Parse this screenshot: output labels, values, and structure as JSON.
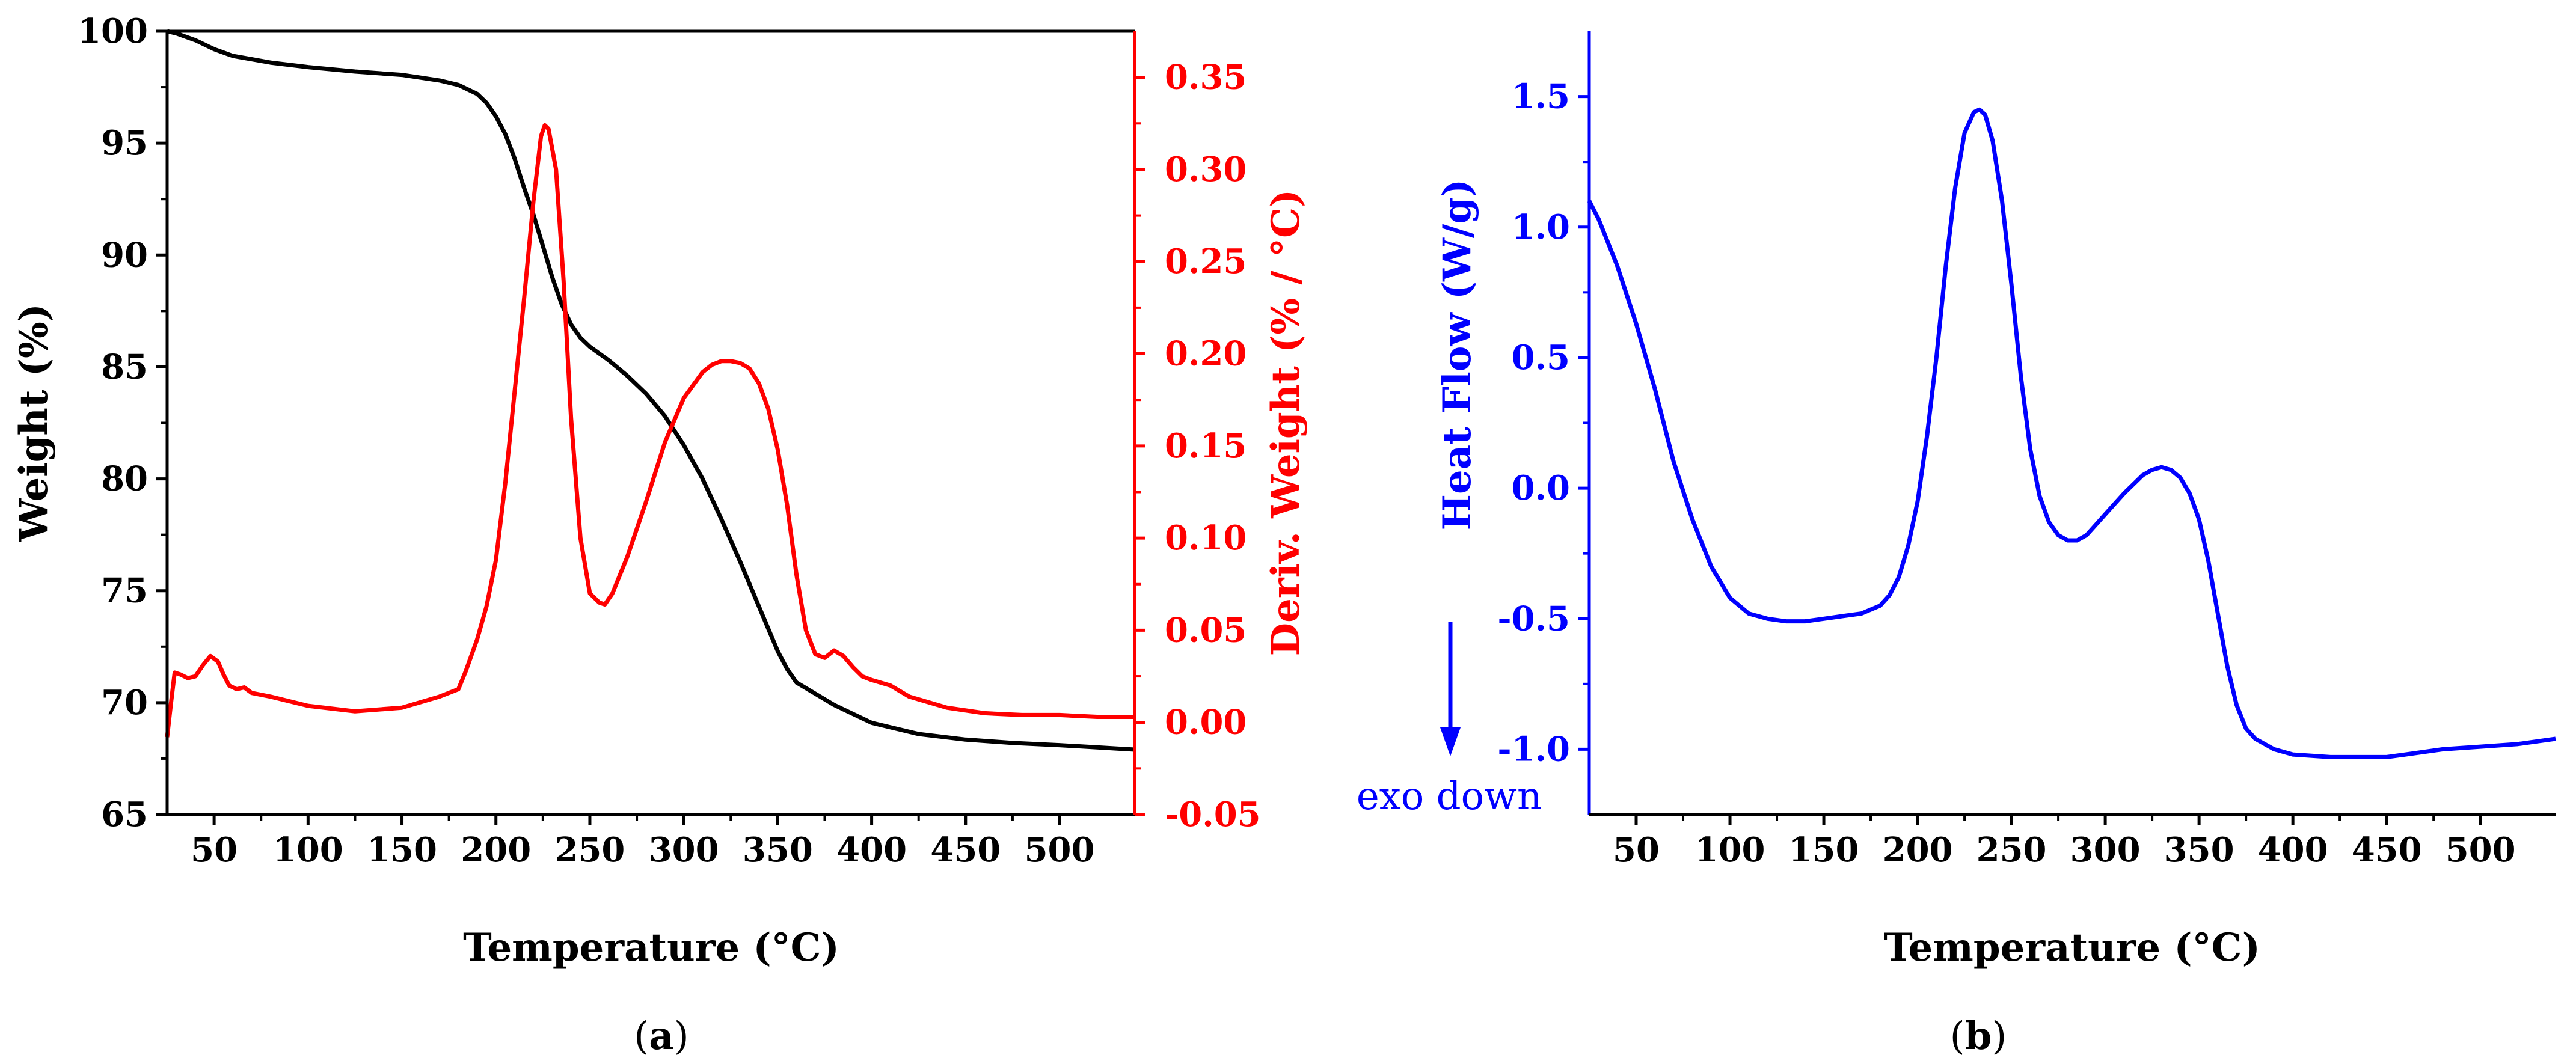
{
  "chart_data": [
    {
      "type": "line",
      "panel_label": "a",
      "caption_open": "(",
      "caption_close": ")",
      "xlabel": "Temperature (°C)",
      "ylabel": "Weight (%)",
      "ylabel_right": "Deriv. Weight (% / °C)",
      "xlim": [
        25,
        540
      ],
      "ylim": [
        65,
        100
      ],
      "ylim_right": [
        -0.05,
        0.375
      ],
      "x_ticks": [
        50,
        100,
        150,
        200,
        250,
        300,
        350,
        400,
        450,
        500
      ],
      "x_tick_labels": [
        "50",
        "100",
        "150",
        "200",
        "250",
        "300",
        "350",
        "400",
        "450",
        "500"
      ],
      "y_ticks": [
        65,
        70,
        75,
        80,
        85,
        90,
        95,
        100
      ],
      "y_tick_labels": [
        "65",
        "70",
        "75",
        "80",
        "85",
        "90",
        "95",
        "100"
      ],
      "y_ticks_right": [
        -0.05,
        0,
        0.05,
        0.1,
        0.15,
        0.2,
        0.25,
        0.3,
        0.35
      ],
      "y_tick_labels_right": [
        "-0.05",
        "0.00",
        "0.05",
        "0.10",
        "0.15",
        "0.20",
        "0.25",
        "0.30",
        "0.35"
      ],
      "series": [
        {
          "name": "Weight",
          "axis": "left",
          "color": "#000000",
          "x": [
            25,
            30,
            40,
            50,
            60,
            70,
            80,
            100,
            125,
            150,
            170,
            180,
            190,
            195,
            200,
            205,
            210,
            215,
            220,
            225,
            230,
            235,
            240,
            245,
            250,
            255,
            260,
            270,
            280,
            290,
            300,
            310,
            320,
            330,
            340,
            350,
            355,
            360,
            370,
            380,
            400,
            425,
            450,
            475,
            500,
            520,
            540
          ],
          "y": [
            100,
            99.9,
            99.6,
            99.2,
            98.9,
            98.75,
            98.6,
            98.4,
            98.2,
            98.05,
            97.8,
            97.6,
            97.2,
            96.8,
            96.2,
            95.4,
            94.3,
            93.0,
            91.8,
            90.4,
            89.0,
            87.8,
            86.9,
            86.3,
            85.9,
            85.6,
            85.3,
            84.6,
            83.8,
            82.8,
            81.5,
            80.0,
            78.2,
            76.3,
            74.3,
            72.3,
            71.5,
            70.9,
            70.4,
            69.9,
            69.1,
            68.6,
            68.35,
            68.2,
            68.1,
            68.0,
            67.9
          ]
        },
        {
          "name": "Deriv. Weight",
          "axis": "right",
          "color": "#ff0000",
          "x": [
            25,
            27,
            29,
            32,
            36,
            40,
            44,
            48,
            52,
            55,
            58,
            62,
            66,
            70,
            80,
            100,
            125,
            150,
            170,
            180,
            184,
            190,
            195,
            200,
            205,
            210,
            215,
            220,
            224,
            226,
            228,
            232,
            236,
            240,
            245,
            250,
            255,
            258,
            262,
            270,
            280,
            290,
            300,
            310,
            315,
            320,
            325,
            330,
            335,
            340,
            345,
            350,
            355,
            360,
            365,
            370,
            375,
            380,
            385,
            390,
            395,
            400,
            410,
            420,
            440,
            460,
            480,
            500,
            520,
            540
          ],
          "y": [
            -0.008,
            0.01,
            0.027,
            0.026,
            0.024,
            0.025,
            0.031,
            0.036,
            0.033,
            0.026,
            0.02,
            0.018,
            0.019,
            0.016,
            0.014,
            0.009,
            0.006,
            0.008,
            0.014,
            0.018,
            0.028,
            0.045,
            0.063,
            0.088,
            0.13,
            0.18,
            0.23,
            0.283,
            0.318,
            0.324,
            0.322,
            0.3,
            0.24,
            0.165,
            0.1,
            0.07,
            0.065,
            0.064,
            0.07,
            0.09,
            0.12,
            0.152,
            0.176,
            0.19,
            0.194,
            0.196,
            0.196,
            0.195,
            0.192,
            0.184,
            0.17,
            0.148,
            0.118,
            0.08,
            0.05,
            0.037,
            0.035,
            0.039,
            0.036,
            0.03,
            0.025,
            0.023,
            0.02,
            0.014,
            0.008,
            0.005,
            0.004,
            0.004,
            0.003,
            0.003
          ]
        }
      ]
    },
    {
      "type": "line",
      "panel_label": "b",
      "caption_open": "(",
      "caption_close": ")",
      "xlabel": "Temperature (°C)",
      "ylabel": "Heat Flow (W/g)",
      "annotation": "exo down",
      "annotation_arrow": "down",
      "xlim": [
        25,
        540
      ],
      "ylim": [
        -1.25,
        1.75
      ],
      "x_ticks": [
        50,
        100,
        150,
        200,
        250,
        300,
        350,
        400,
        450,
        500
      ],
      "x_tick_labels": [
        "50",
        "100",
        "150",
        "200",
        "250",
        "300",
        "350",
        "400",
        "450",
        "500"
      ],
      "y_ticks": [
        -1.0,
        -0.5,
        0.0,
        0.5,
        1.0,
        1.5
      ],
      "y_tick_labels": [
        "-1.0",
        "-0.5",
        "0.0",
        "0.5",
        "1.0",
        "1.5"
      ],
      "series": [
        {
          "name": "Heat Flow",
          "color": "#0000ff",
          "x": [
            25,
            30,
            40,
            50,
            60,
            70,
            80,
            90,
            100,
            110,
            120,
            130,
            140,
            150,
            160,
            170,
            180,
            185,
            190,
            195,
            200,
            205,
            210,
            215,
            220,
            225,
            230,
            233,
            236,
            240,
            245,
            250,
            255,
            260,
            265,
            270,
            275,
            280,
            285,
            290,
            295,
            300,
            310,
            320,
            325,
            330,
            335,
            340,
            345,
            350,
            355,
            360,
            365,
            370,
            375,
            380,
            390,
            400,
            420,
            440,
            450,
            460,
            480,
            500,
            520,
            540
          ],
          "y": [
            1.1,
            1.03,
            0.85,
            0.63,
            0.38,
            0.1,
            -0.12,
            -0.3,
            -0.42,
            -0.48,
            -0.5,
            -0.51,
            -0.51,
            -0.5,
            -0.49,
            -0.48,
            -0.45,
            -0.41,
            -0.34,
            -0.22,
            -0.05,
            0.2,
            0.5,
            0.85,
            1.15,
            1.36,
            1.44,
            1.45,
            1.43,
            1.33,
            1.1,
            0.78,
            0.43,
            0.15,
            -0.03,
            -0.13,
            -0.18,
            -0.2,
            -0.2,
            -0.18,
            -0.14,
            -0.1,
            -0.02,
            0.05,
            0.07,
            0.08,
            0.07,
            0.04,
            -0.02,
            -0.12,
            -0.28,
            -0.48,
            -0.68,
            -0.83,
            -0.92,
            -0.96,
            -1.0,
            -1.02,
            -1.03,
            -1.03,
            -1.03,
            -1.02,
            -1.0,
            -0.99,
            -0.98,
            -0.96
          ]
        }
      ]
    }
  ]
}
